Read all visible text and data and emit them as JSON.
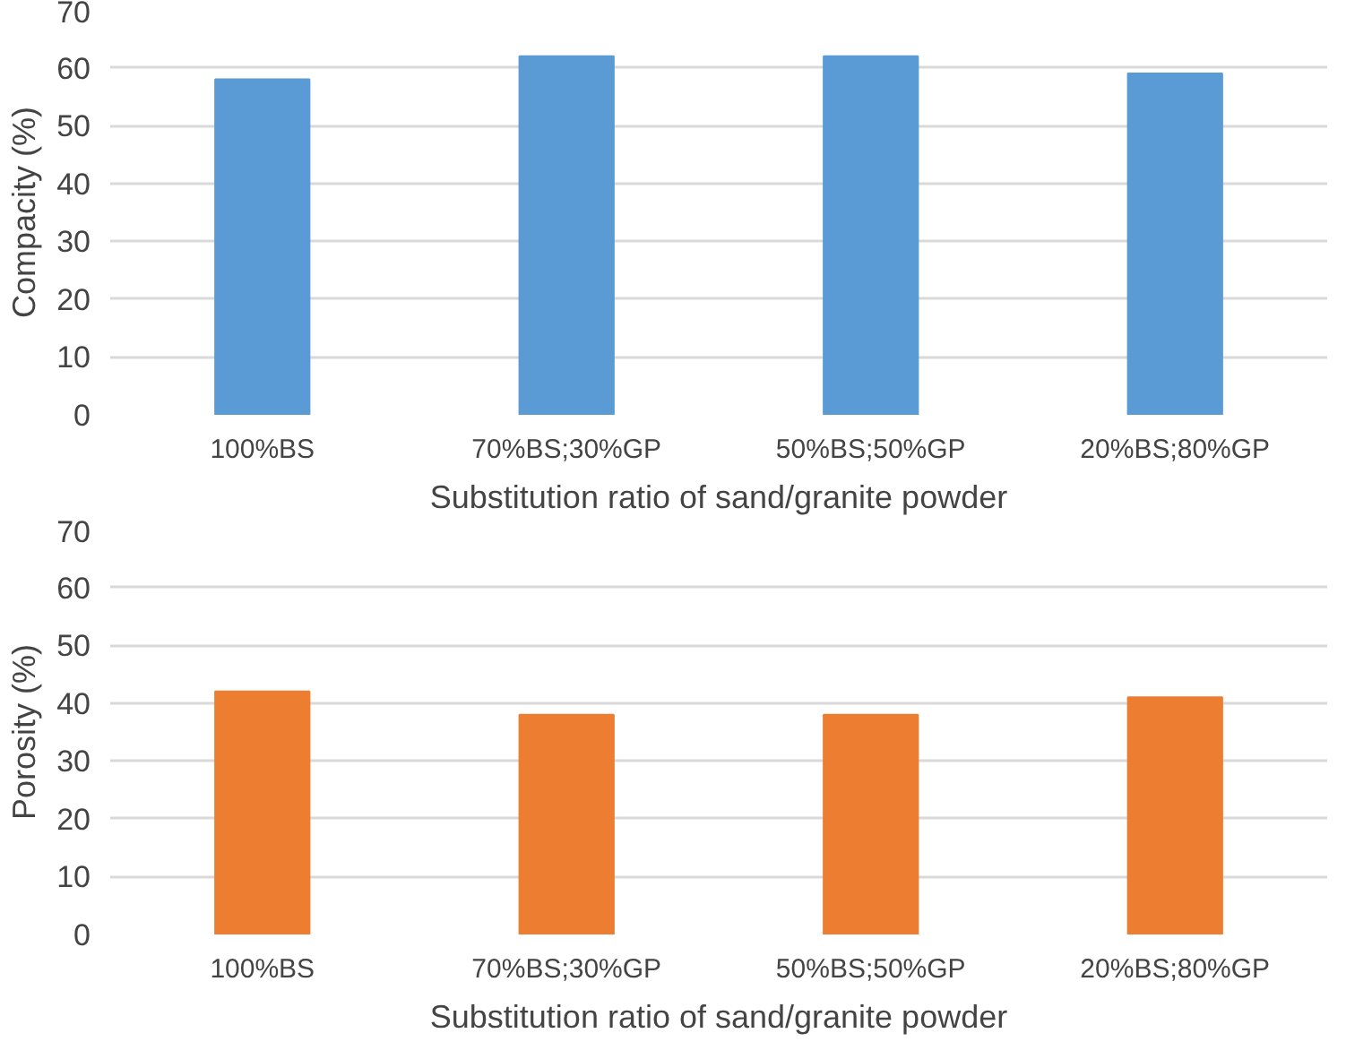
{
  "chart_data": [
    {
      "type": "bar",
      "categories": [
        "100%BS",
        "70%BS;30%GP",
        "50%BS;50%GP",
        "20%BS;80%GP"
      ],
      "values": [
        58,
        62,
        62,
        59
      ],
      "color": "#5b9bd5",
      "xlabel": "Substitution ratio of sand/granite powder",
      "ylabel": "Compacity (%)",
      "ylim": [
        0,
        70
      ],
      "yticks": [
        0,
        10,
        20,
        30,
        40,
        50,
        60,
        70
      ],
      "grid": "y"
    },
    {
      "type": "bar",
      "categories": [
        "100%BS",
        "70%BS;30%GP",
        "50%BS;50%GP",
        "20%BS;80%GP"
      ],
      "values": [
        42,
        38,
        38,
        41
      ],
      "color": "#ed7d31",
      "xlabel": "Substitution ratio of sand/granite powder",
      "ylabel": "Porosity (%)",
      "ylim": [
        0,
        70
      ],
      "yticks": [
        0,
        10,
        20,
        30,
        40,
        50,
        60,
        70
      ],
      "grid": "y"
    }
  ]
}
